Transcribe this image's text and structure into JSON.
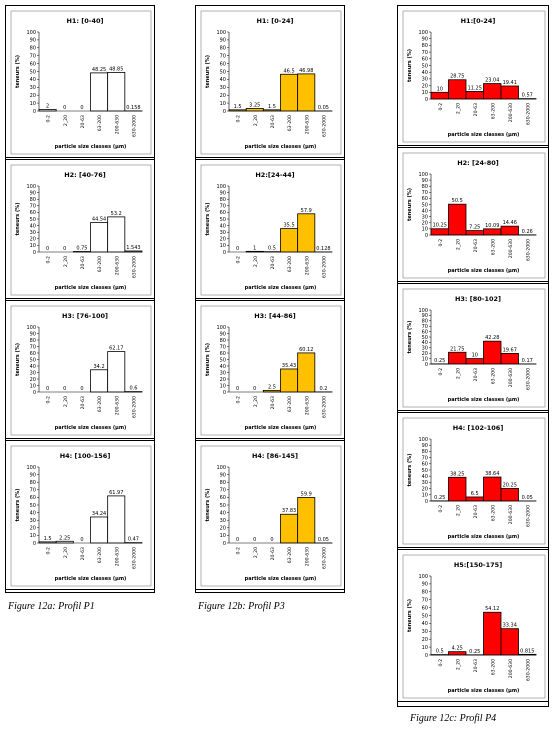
{
  "columns": [
    {
      "caption": "Figure 12a: Profil P1",
      "color": "#ffffff",
      "panels": [
        {
          "title": "H1: [0-40]",
          "values": [
            2,
            0,
            0,
            48.25,
            48.85,
            0.158
          ],
          "labels": [
            "2",
            "0",
            "0",
            "48.25",
            "48.85",
            "0.158"
          ]
        },
        {
          "title": "H2: [40-76]",
          "values": [
            0,
            0,
            0.75,
            44.54,
            53.2,
            1.543
          ],
          "labels": [
            "0",
            "0",
            "0.75",
            "44.54",
            "53.2",
            "1.543"
          ]
        },
        {
          "title": "H3: [76-100]",
          "values": [
            0,
            0,
            0,
            34.2,
            62.17,
            0.6
          ],
          "labels": [
            "0",
            "0",
            "0",
            "34.2",
            "62.17",
            "0.6"
          ]
        },
        {
          "title": "H4: [100-156]",
          "values": [
            1.5,
            2.25,
            0,
            34.24,
            61.97,
            0.47
          ],
          "labels": [
            "1.5",
            "2.25",
            "0",
            "34.24",
            "61.97",
            "0.47"
          ]
        }
      ]
    },
    {
      "caption": "Figure 12b: Profil P3",
      "color": "#ffc000",
      "panels": [
        {
          "title": "H1: [0-24]",
          "values": [
            1.5,
            3.25,
            1.5,
            46.5,
            46.98,
            0.05
          ],
          "labels": [
            "1.5",
            "3.25",
            "1.5",
            "46.5",
            "46.98",
            "0.05"
          ]
        },
        {
          "title": "H2:[24-44]",
          "values": [
            0,
            1,
            0.5,
            35.5,
            57.9,
            0.128
          ],
          "labels": [
            "0",
            "1",
            "0.5",
            "35.5",
            "57.9",
            "0.128"
          ]
        },
        {
          "title": "H3: [44-86]",
          "values": [
            0,
            0,
            2.5,
            35.43,
            60.12,
            0.2
          ],
          "labels": [
            "0",
            "0",
            "2.5",
            "35.43",
            "60.12",
            "0.2"
          ]
        },
        {
          "title": "H4: [86-145]",
          "values": [
            0,
            0,
            0,
            37.83,
            59.9,
            0.05
          ],
          "labels": [
            "0",
            "0",
            "0",
            "37.83",
            "59.9",
            "0.05"
          ]
        }
      ]
    },
    {
      "caption": "Figure 12c: Profil P4",
      "color": "#ff0000",
      "panels": [
        {
          "title": "H1:[0-24]",
          "values": [
            10,
            28.75,
            11.25,
            23.04,
            19.41,
            0.57
          ],
          "labels": [
            "10",
            "28.75",
            "11.25",
            "23.04",
            "19.41",
            "0.57"
          ]
        },
        {
          "title": "H2: [24-80]",
          "values": [
            10.25,
            50.5,
            7.25,
            10.09,
            14.46,
            0.26
          ],
          "labels": [
            "10.25",
            "50.5",
            "7.25",
            "10.09",
            "14.46",
            "0.26"
          ]
        },
        {
          "title": "H3: [80-102]",
          "values": [
            0.25,
            21.75,
            10,
            42.28,
            19.67,
            0.17
          ],
          "labels": [
            "0.25",
            "21.75",
            "10",
            "42.28",
            "19.67",
            "0.17"
          ]
        },
        {
          "title": "H4: [102-106]",
          "values": [
            0.25,
            38.25,
            6.5,
            38.64,
            20.25,
            0.05
          ],
          "labels": [
            "0.25",
            "38.25",
            "6.5",
            "38.64",
            "20.25",
            "0.05"
          ]
        },
        {
          "title": "H5:[150-175]",
          "values": [
            0.5,
            4.25,
            0.25,
            54.12,
            33.34,
            0.815
          ],
          "labels": [
            "0.5",
            "4.25",
            "0.25",
            "54.12",
            "33.34",
            "0.815"
          ]
        }
      ]
    }
  ],
  "chart_data": {
    "type": "bar",
    "categories": [
      "0-2",
      "2_20",
      "20-63",
      "63-200",
      "200-630",
      "630-2000"
    ],
    "xlabel": "particle size classes (µm)",
    "ylabel": "teneurs (%)",
    "ylim": [
      0,
      100
    ],
    "yticks": [
      "0",
      "10",
      "20",
      "30",
      "40",
      "50",
      "60",
      "70",
      "80",
      "90",
      "100"
    ]
  }
}
